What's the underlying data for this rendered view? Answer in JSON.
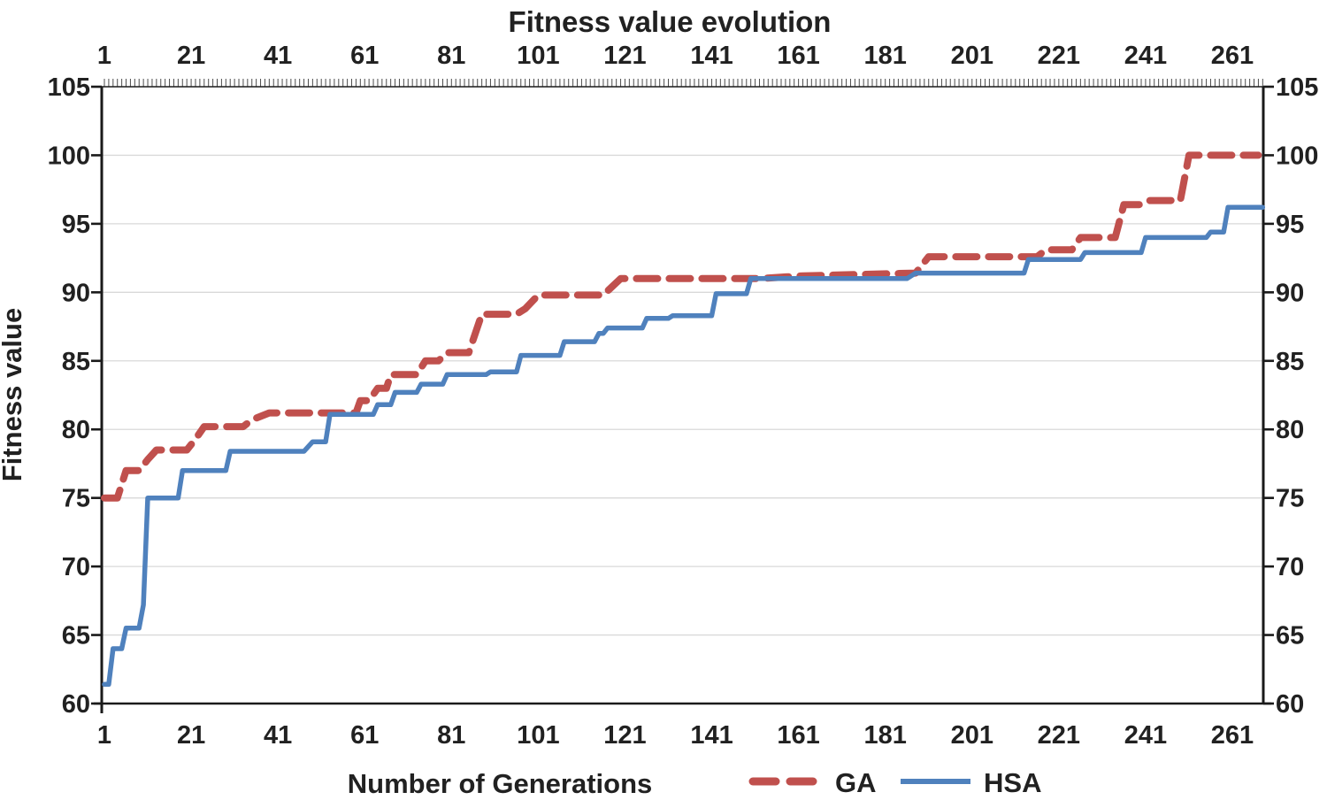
{
  "chart_data": {
    "type": "line",
    "title": "Fitness value evolution",
    "xlabel": "Number of Generations",
    "ylabel": "Fitness value",
    "x_ticks": [
      1,
      21,
      41,
      61,
      81,
      101,
      121,
      141,
      161,
      181,
      201,
      221,
      241,
      261
    ],
    "y_ticks": [
      60,
      65,
      70,
      75,
      80,
      85,
      90,
      95,
      100,
      105
    ],
    "xlim": [
      1,
      268
    ],
    "ylim": [
      60,
      105
    ],
    "grid": "horizontal-major",
    "x_axis_sides": [
      "top",
      "bottom"
    ],
    "y_axis_sides": [
      "left",
      "right"
    ],
    "legend_position": "bottom",
    "series": [
      {
        "name": "GA",
        "style": "dashed",
        "color": "#C0504D",
        "points": [
          [
            1,
            75
          ],
          [
            4,
            75
          ],
          [
            6,
            77
          ],
          [
            9,
            77
          ],
          [
            11,
            77.8
          ],
          [
            13,
            78.5
          ],
          [
            20,
            78.5
          ],
          [
            22,
            79.3
          ],
          [
            24,
            80.2
          ],
          [
            33,
            80.2
          ],
          [
            35,
            80.7
          ],
          [
            39,
            81.2
          ],
          [
            59,
            81.2
          ],
          [
            60,
            82.1
          ],
          [
            62,
            82.1
          ],
          [
            64,
            83
          ],
          [
            66,
            83
          ],
          [
            67,
            84
          ],
          [
            73,
            84
          ],
          [
            75,
            85
          ],
          [
            78,
            85
          ],
          [
            80,
            85.6
          ],
          [
            85,
            85.6
          ],
          [
            88,
            88.4
          ],
          [
            96,
            88.4
          ],
          [
            98,
            88.8
          ],
          [
            101,
            89.8
          ],
          [
            116,
            89.8
          ],
          [
            120,
            91
          ],
          [
            152,
            91
          ],
          [
            162,
            91.2
          ],
          [
            188,
            91.4
          ],
          [
            191,
            92.6
          ],
          [
            216,
            92.6
          ],
          [
            218,
            93.1
          ],
          [
            224,
            93.1
          ],
          [
            226,
            94
          ],
          [
            234,
            94
          ],
          [
            236,
            96.4
          ],
          [
            240,
            96.4
          ],
          [
            242,
            96.7
          ],
          [
            249,
            96.7
          ],
          [
            251,
            100
          ],
          [
            267,
            100
          ]
        ]
      },
      {
        "name": "HSA",
        "style": "solid",
        "color": "#4F81BD",
        "points": [
          [
            1,
            61.4
          ],
          [
            2,
            61.4
          ],
          [
            3,
            64
          ],
          [
            5,
            64
          ],
          [
            6,
            65.5
          ],
          [
            9,
            65.5
          ],
          [
            10,
            67.2
          ],
          [
            11,
            75
          ],
          [
            18,
            75
          ],
          [
            19,
            77
          ],
          [
            29,
            77
          ],
          [
            30,
            78.4
          ],
          [
            47,
            78.4
          ],
          [
            49,
            79.1
          ],
          [
            52,
            79.1
          ],
          [
            53,
            81.1
          ],
          [
            63,
            81.1
          ],
          [
            64,
            81.8
          ],
          [
            67,
            81.8
          ],
          [
            68,
            82.7
          ],
          [
            73,
            82.7
          ],
          [
            74,
            83.3
          ],
          [
            79,
            83.3
          ],
          [
            80,
            84
          ],
          [
            89,
            84
          ],
          [
            90,
            84.2
          ],
          [
            96,
            84.2
          ],
          [
            97,
            85.4
          ],
          [
            106,
            85.4
          ],
          [
            107,
            86.4
          ],
          [
            114,
            86.4
          ],
          [
            115,
            87
          ],
          [
            116,
            87
          ],
          [
            117,
            87.4
          ],
          [
            125,
            87.4
          ],
          [
            126,
            88.1
          ],
          [
            131,
            88.1
          ],
          [
            132,
            88.3
          ],
          [
            141,
            88.3
          ],
          [
            142,
            89.9
          ],
          [
            149,
            89.9
          ],
          [
            150,
            91
          ],
          [
            186,
            91
          ],
          [
            188,
            91.4
          ],
          [
            213,
            91.4
          ],
          [
            214,
            92.4
          ],
          [
            226,
            92.4
          ],
          [
            227,
            92.9
          ],
          [
            240,
            92.9
          ],
          [
            241,
            94
          ],
          [
            255,
            94
          ],
          [
            256,
            94.4
          ],
          [
            259,
            94.4
          ],
          [
            260,
            96.2
          ],
          [
            268,
            96.2
          ]
        ]
      }
    ]
  },
  "colors": {
    "background": "#FFFFFF",
    "grid": "#D9D9D9",
    "axis": "#1A1A1A",
    "minor_tick": "#4D4D4D",
    "text": "#212121",
    "ga": "#C0504D",
    "hsa": "#4F81BD"
  }
}
